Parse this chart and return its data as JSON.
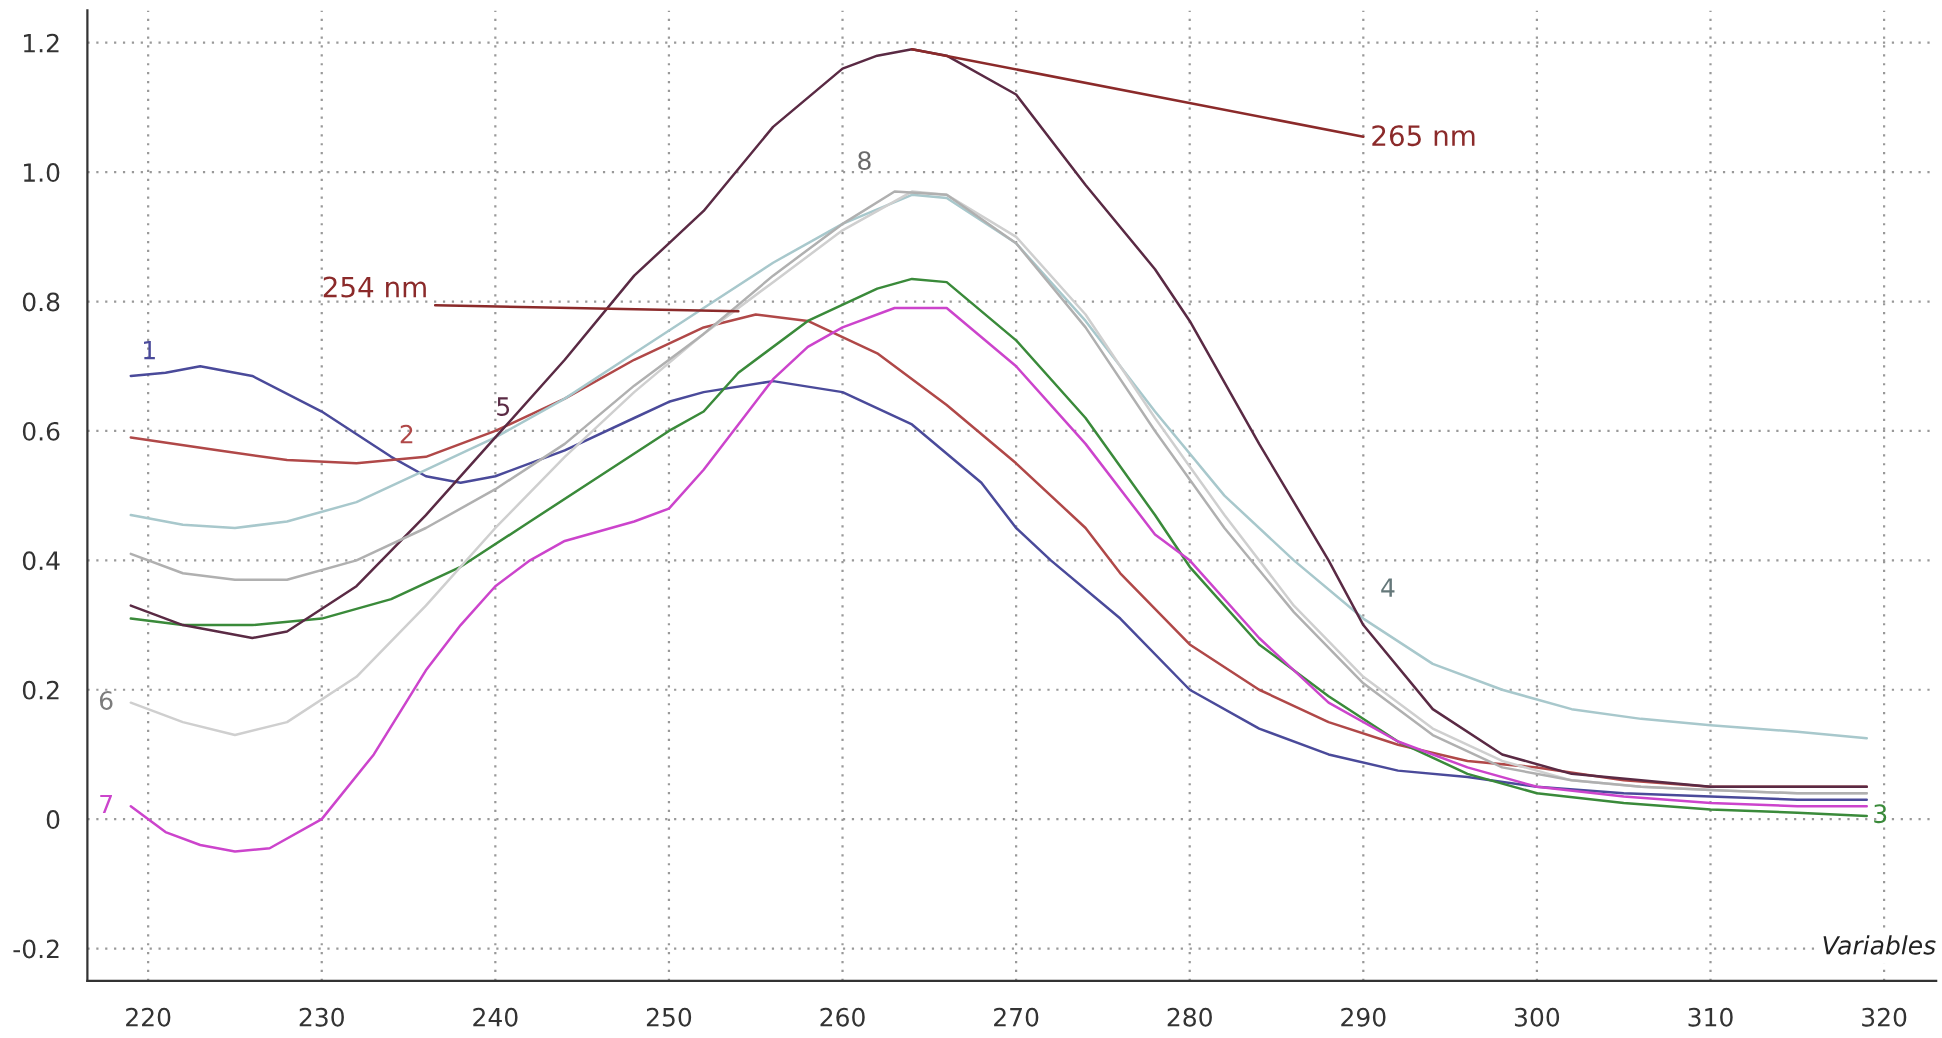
{
  "chart_data": {
    "type": "line",
    "xlabel": "Variables",
    "xlim": [
      216.5,
      323
    ],
    "ylim": [
      -0.25,
      1.25
    ],
    "xticks": [
      220,
      230,
      240,
      250,
      260,
      270,
      280,
      290,
      300,
      310,
      320
    ],
    "yticks": [
      -0.2,
      0,
      0.2,
      0.4,
      0.6,
      0.8,
      {
        "value": 1.0,
        "label": "1.0"
      },
      1.2
    ],
    "grid": true,
    "legend": false,
    "marker": "none",
    "line_style": "solid",
    "annotations": [
      {
        "text": "254 nm",
        "x": 254,
        "y": 0.785
      },
      {
        "text": "265 nm",
        "x": 264,
        "y": 1.19
      }
    ],
    "series": [
      {
        "name": "1",
        "color": "#4a4a9a",
        "x": [
          219,
          221,
          223,
          226,
          230,
          234,
          236,
          238,
          240,
          244,
          248,
          250,
          252,
          256,
          260,
          264,
          268,
          270,
          272,
          276,
          280,
          284,
          288,
          292,
          296,
          300,
          305,
          310,
          315,
          319
        ],
        "values": [
          0.685,
          0.69,
          0.7,
          0.685,
          0.63,
          0.56,
          0.53,
          0.52,
          0.53,
          0.57,
          0.62,
          0.645,
          0.66,
          0.677,
          0.66,
          0.61,
          0.52,
          0.45,
          0.4,
          0.31,
          0.2,
          0.14,
          0.1,
          0.075,
          0.065,
          0.05,
          0.04,
          0.035,
          0.03,
          0.03
        ]
      },
      {
        "name": "2",
        "color": "#b04848",
        "x": [
          219,
          224,
          228,
          232,
          236,
          240,
          244,
          248,
          252,
          255,
          258,
          262,
          266,
          270,
          274,
          276,
          280,
          284,
          288,
          292,
          296,
          300,
          305,
          310,
          315,
          319
        ],
        "values": [
          0.59,
          0.57,
          0.555,
          0.55,
          0.56,
          0.6,
          0.65,
          0.71,
          0.76,
          0.78,
          0.77,
          0.72,
          0.64,
          0.55,
          0.45,
          0.38,
          0.27,
          0.2,
          0.15,
          0.115,
          0.09,
          0.08,
          0.06,
          0.05,
          0.05,
          0.05
        ]
      },
      {
        "name": "3",
        "color": "#3a8a3a",
        "x": [
          219,
          222,
          226,
          230,
          234,
          238,
          242,
          246,
          250,
          252,
          254,
          258,
          262,
          264,
          266,
          270,
          274,
          278,
          280,
          284,
          288,
          292,
          296,
          300,
          305,
          310,
          315,
          319
        ],
        "values": [
          0.31,
          0.3,
          0.3,
          0.31,
          0.34,
          0.39,
          0.46,
          0.53,
          0.6,
          0.63,
          0.69,
          0.77,
          0.82,
          0.835,
          0.83,
          0.74,
          0.62,
          0.47,
          0.39,
          0.27,
          0.19,
          0.12,
          0.07,
          0.04,
          0.025,
          0.015,
          0.01,
          0.005
        ]
      },
      {
        "name": "4",
        "color": "#a8c8cc",
        "x": [
          219,
          222,
          225,
          228,
          232,
          236,
          240,
          244,
          248,
          252,
          256,
          260,
          264,
          266,
          270,
          274,
          278,
          282,
          286,
          290,
          294,
          298,
          302,
          306,
          310,
          315,
          319
        ],
        "values": [
          0.47,
          0.455,
          0.45,
          0.46,
          0.49,
          0.54,
          0.59,
          0.65,
          0.72,
          0.79,
          0.86,
          0.92,
          0.965,
          0.96,
          0.89,
          0.77,
          0.63,
          0.5,
          0.4,
          0.31,
          0.24,
          0.2,
          0.17,
          0.155,
          0.145,
          0.135,
          0.125
        ]
      },
      {
        "name": "5",
        "color": "#5a2a44",
        "x": [
          219,
          222,
          226,
          228,
          232,
          236,
          240,
          244,
          248,
          250,
          252,
          256,
          260,
          262,
          264,
          266,
          270,
          274,
          278,
          280,
          284,
          288,
          290,
          294,
          298,
          302,
          306,
          310,
          315,
          319
        ],
        "values": [
          0.33,
          0.3,
          0.28,
          0.29,
          0.36,
          0.47,
          0.59,
          0.71,
          0.84,
          0.89,
          0.94,
          1.07,
          1.16,
          1.18,
          1.19,
          1.18,
          1.12,
          0.98,
          0.85,
          0.77,
          0.58,
          0.4,
          0.3,
          0.17,
          0.1,
          0.07,
          0.06,
          0.05,
          0.05,
          0.05
        ]
      },
      {
        "name": "6",
        "color": "#cfcfcf",
        "x": [
          219,
          222,
          225,
          228,
          232,
          236,
          240,
          244,
          248,
          252,
          256,
          260,
          264,
          266,
          270,
          274,
          278,
          282,
          286,
          290,
          294,
          298,
          302,
          306,
          310,
          315,
          319
        ],
        "values": [
          0.18,
          0.15,
          0.13,
          0.15,
          0.22,
          0.33,
          0.45,
          0.56,
          0.66,
          0.75,
          0.83,
          0.91,
          0.97,
          0.965,
          0.9,
          0.78,
          0.62,
          0.47,
          0.33,
          0.22,
          0.14,
          0.09,
          0.06,
          0.05,
          0.045,
          0.04,
          0.04
        ]
      },
      {
        "name": "7",
        "color": "#cc44cc",
        "x": [
          219,
          221,
          223,
          225,
          227,
          230,
          233,
          236,
          238,
          240,
          242,
          244,
          248,
          250,
          252,
          254,
          256,
          258,
          260,
          263,
          266,
          270,
          274,
          278,
          280,
          284,
          288,
          292,
          296,
          300,
          305,
          310,
          315,
          319
        ],
        "values": [
          0.02,
          -0.02,
          -0.04,
          -0.05,
          -0.045,
          0.0,
          0.1,
          0.23,
          0.3,
          0.36,
          0.4,
          0.43,
          0.46,
          0.48,
          0.54,
          0.61,
          0.68,
          0.73,
          0.76,
          0.79,
          0.79,
          0.7,
          0.58,
          0.44,
          0.4,
          0.28,
          0.18,
          0.12,
          0.08,
          0.05,
          0.035,
          0.025,
          0.02,
          0.02
        ]
      },
      {
        "name": "8",
        "color": "#b0b0b0",
        "x": [
          219,
          222,
          225,
          228,
          232,
          236,
          240,
          244,
          248,
          252,
          256,
          260,
          263,
          266,
          270,
          274,
          278,
          282,
          286,
          290,
          294,
          298,
          302,
          306,
          310,
          315,
          319
        ],
        "values": [
          0.41,
          0.38,
          0.37,
          0.37,
          0.4,
          0.45,
          0.51,
          0.58,
          0.67,
          0.75,
          0.84,
          0.92,
          0.97,
          0.965,
          0.89,
          0.76,
          0.6,
          0.45,
          0.32,
          0.21,
          0.13,
          0.08,
          0.06,
          0.05,
          0.045,
          0.04,
          0.04
        ]
      }
    ]
  }
}
